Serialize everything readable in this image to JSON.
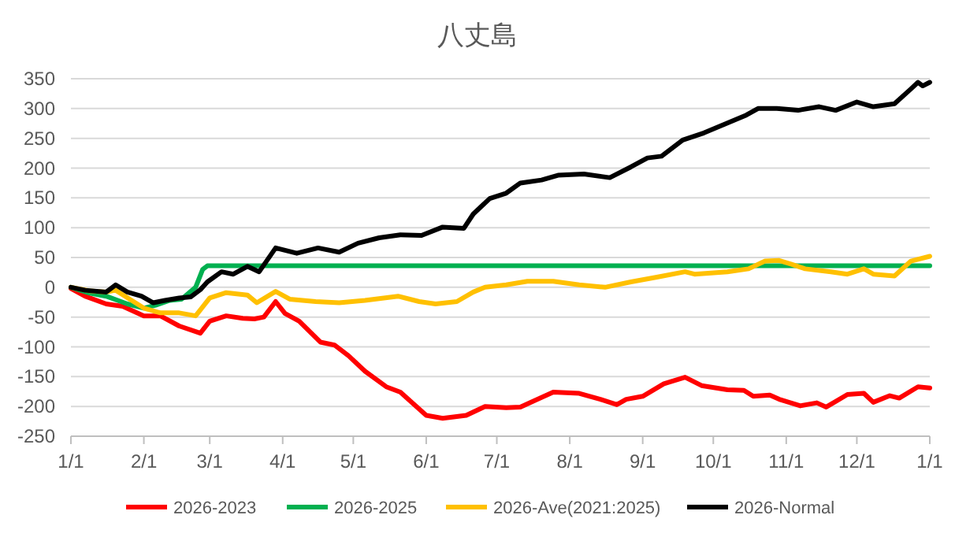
{
  "chart_data": {
    "type": "line",
    "title": "八丈島",
    "xlim": [
      "2026-01-01",
      "2027-01-01"
    ],
    "xticks": [
      {
        "value": "2026-01-01",
        "label": "1/1"
      },
      {
        "value": "2026-02-01",
        "label": "2/1"
      },
      {
        "value": "2026-03-01",
        "label": "3/1"
      },
      {
        "value": "2026-04-01",
        "label": "4/1"
      },
      {
        "value": "2026-05-01",
        "label": "5/1"
      },
      {
        "value": "2026-06-01",
        "label": "6/1"
      },
      {
        "value": "2026-07-01",
        "label": "7/1"
      },
      {
        "value": "2026-08-01",
        "label": "8/1"
      },
      {
        "value": "2026-09-01",
        "label": "9/1"
      },
      {
        "value": "2026-10-01",
        "label": "10/1"
      },
      {
        "value": "2026-11-01",
        "label": "11/1"
      },
      {
        "value": "2026-12-01",
        "label": "12/1"
      },
      {
        "value": "2027-01-01",
        "label": "1/1"
      }
    ],
    "ylim": [
      -250,
      350
    ],
    "yticks": [
      -250,
      -200,
      -150,
      -100,
      -50,
      0,
      50,
      100,
      150,
      200,
      250,
      300,
      350
    ],
    "grid": "y",
    "legend": "bottom",
    "line_style": "solid",
    "marker": "none",
    "series": [
      {
        "name": "2026-2023",
        "color": "#ff0000",
        "x": [
          "2026-01-01",
          "2026-01-07",
          "2026-01-16",
          "2026-01-23",
          "2026-02-01",
          "2026-02-08",
          "2026-02-16",
          "2026-02-25",
          "2026-03-01",
          "2026-03-08",
          "2026-03-15",
          "2026-03-20",
          "2026-03-24",
          "2026-03-29",
          "2026-04-02",
          "2026-04-08",
          "2026-04-17",
          "2026-04-23",
          "2026-04-29",
          "2026-05-06",
          "2026-05-15",
          "2026-05-21",
          "2026-06-01",
          "2026-06-08",
          "2026-06-18",
          "2026-06-26",
          "2026-07-05",
          "2026-07-11",
          "2026-07-25",
          "2026-08-05",
          "2026-08-14",
          "2026-08-21",
          "2026-08-25",
          "2026-09-01",
          "2026-09-10",
          "2026-09-19",
          "2026-09-26",
          "2026-10-07",
          "2026-10-14",
          "2026-10-18",
          "2026-10-25",
          "2026-10-29",
          "2026-11-07",
          "2026-11-14",
          "2026-11-18",
          "2026-11-27",
          "2026-12-04",
          "2026-12-08",
          "2026-12-15",
          "2026-12-19",
          "2026-12-27",
          "2027-01-01"
        ],
        "values": [
          -2,
          -15,
          -28,
          -32,
          -48,
          -48,
          -65,
          -77,
          -57,
          -48,
          -52,
          -53,
          -50,
          -24,
          -44,
          -57,
          -92,
          -97,
          -115,
          -141,
          -167,
          -176,
          -215,
          -220,
          -215,
          -200,
          -202,
          -201,
          -176,
          -178,
          -188,
          -197,
          -188,
          -183,
          -162,
          -151,
          -165,
          -172,
          -173,
          -183,
          -181,
          -188,
          -199,
          -194,
          -201,
          -180,
          -178,
          -193,
          -182,
          -186,
          -167,
          -169
        ]
      },
      {
        "name": "2026-2025",
        "color": "#00b050",
        "x": [
          "2026-01-01",
          "2026-01-09",
          "2026-01-16",
          "2026-01-25",
          "2026-02-01",
          "2026-02-06",
          "2026-02-12",
          "2026-02-17",
          "2026-02-23",
          "2026-02-26",
          "2026-02-28",
          "2027-01-01"
        ],
        "values": [
          0,
          -10,
          -15,
          -28,
          -35,
          -30,
          -22,
          -20,
          0,
          30,
          36,
          36
        ]
      },
      {
        "name": "2026-Ave(2021:2025)",
        "color": "#ffc000",
        "x": [
          "2026-01-01",
          "2026-01-09",
          "2026-01-16",
          "2026-01-20",
          "2026-01-26",
          "2026-02-01",
          "2026-02-08",
          "2026-02-16",
          "2026-02-23",
          "2026-03-01",
          "2026-03-08",
          "2026-03-17",
          "2026-03-21",
          "2026-03-29",
          "2026-04-04",
          "2026-04-15",
          "2026-04-25",
          "2026-05-06",
          "2026-05-20",
          "2026-05-29",
          "2026-06-05",
          "2026-06-14",
          "2026-06-21",
          "2026-06-26",
          "2026-07-05",
          "2026-07-14",
          "2026-07-25",
          "2026-08-05",
          "2026-08-16",
          "2026-08-27",
          "2026-09-07",
          "2026-09-19",
          "2026-09-23",
          "2026-10-07",
          "2026-10-16",
          "2026-10-23",
          "2026-10-29",
          "2026-11-03",
          "2026-11-09",
          "2026-11-20",
          "2026-11-27",
          "2026-12-04",
          "2026-12-08",
          "2026-12-17",
          "2026-12-24",
          "2027-01-01"
        ],
        "values": [
          0,
          -6,
          -8,
          -5,
          -20,
          -35,
          -43,
          -43,
          -48,
          -18,
          -9,
          -13,
          -26,
          -7,
          -20,
          -24,
          -26,
          -22,
          -15,
          -24,
          -28,
          -24,
          -8,
          0,
          4,
          10,
          10,
          4,
          0,
          9,
          17,
          26,
          22,
          26,
          31,
          44,
          45,
          39,
          31,
          26,
          22,
          31,
          22,
          19,
          44,
          52
        ]
      },
      {
        "name": "2026-Normal",
        "color": "#000000",
        "x": [
          "2026-01-01",
          "2026-01-07",
          "2026-01-16",
          "2026-01-20",
          "2026-01-25",
          "2026-01-31",
          "2026-02-05",
          "2026-02-10",
          "2026-02-16",
          "2026-02-21",
          "2026-02-25",
          "2026-02-28",
          "2026-03-06",
          "2026-03-11",
          "2026-03-17",
          "2026-03-22",
          "2026-03-29",
          "2026-04-07",
          "2026-04-16",
          "2026-04-25",
          "2026-05-03",
          "2026-05-12",
          "2026-05-21",
          "2026-05-30",
          "2026-06-08",
          "2026-06-17",
          "2026-06-21",
          "2026-06-28",
          "2026-07-05",
          "2026-07-11",
          "2026-07-20",
          "2026-07-27",
          "2026-08-07",
          "2026-08-18",
          "2026-08-27",
          "2026-09-03",
          "2026-09-09",
          "2026-09-18",
          "2026-09-27",
          "2026-10-06",
          "2026-10-15",
          "2026-10-20",
          "2026-10-28",
          "2026-11-06",
          "2026-11-15",
          "2026-11-22",
          "2026-12-01",
          "2026-12-08",
          "2026-12-17",
          "2026-12-24",
          "2026-12-27",
          "2026-12-29",
          "2027-01-01"
        ],
        "values": [
          0,
          -5,
          -8,
          4,
          -8,
          -15,
          -26,
          -22,
          -18,
          -16,
          -4,
          9,
          26,
          22,
          35,
          26,
          66,
          57,
          66,
          59,
          74,
          83,
          88,
          87,
          101,
          99,
          123,
          149,
          158,
          175,
          180,
          188,
          190,
          184,
          202,
          217,
          220,
          247,
          259,
          274,
          289,
          300,
          300,
          297,
          303,
          297,
          311,
          303,
          308,
          333,
          344,
          338,
          344
        ]
      }
    ]
  }
}
